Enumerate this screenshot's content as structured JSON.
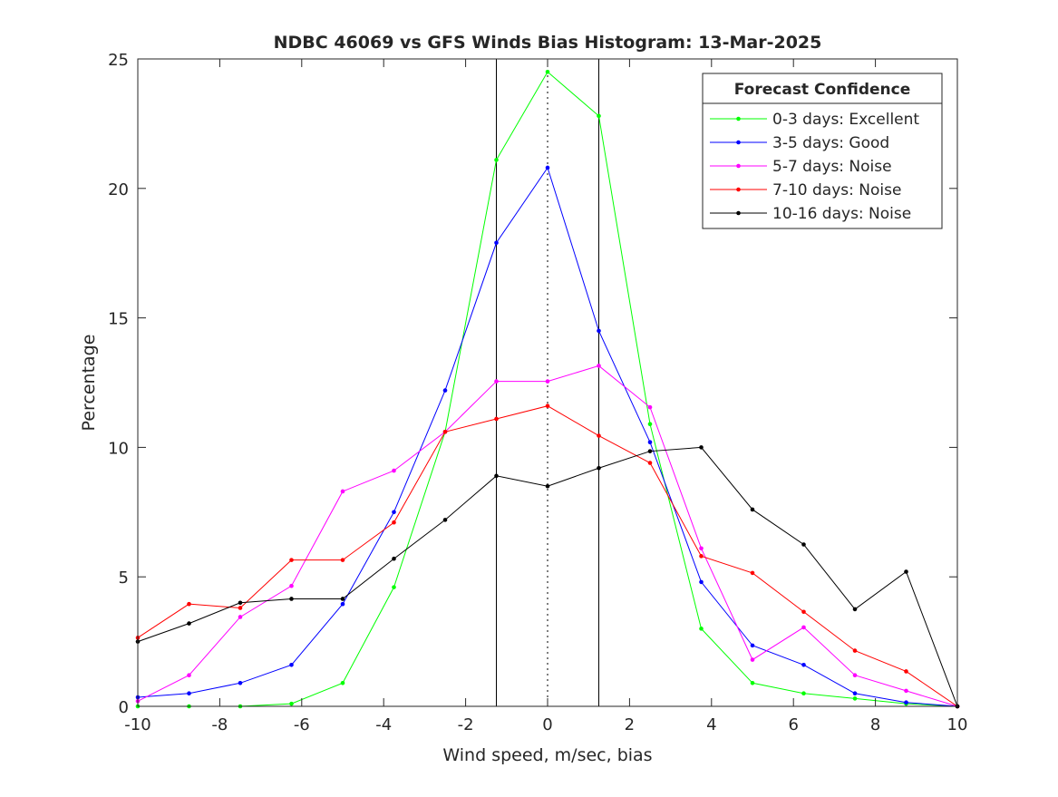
{
  "chart_data": {
    "type": "line",
    "title": "NDBC 46069 vs GFS Winds Bias Histogram: 13-Mar-2025",
    "xlabel": "Wind speed, m/sec, bias",
    "ylabel": "Percentage",
    "xlim": [
      -10,
      10
    ],
    "ylim": [
      0,
      25
    ],
    "xticks": [
      -10,
      -8,
      -6,
      -4,
      -2,
      0,
      2,
      4,
      6,
      8,
      10
    ],
    "yticks": [
      0,
      5,
      10,
      15,
      20,
      25
    ],
    "grid": false,
    "legend": {
      "title": "Forecast Confidence",
      "placement": "top-right"
    },
    "reference_lines": [
      {
        "x": -1.25,
        "style": "solid",
        "color": "#000000"
      },
      {
        "x": 0,
        "style": "dotted",
        "color": "#000000"
      },
      {
        "x": 1.25,
        "style": "solid",
        "color": "#000000"
      }
    ],
    "x": [
      -10,
      -8.75,
      -7.5,
      -6.25,
      -5,
      -3.75,
      -2.5,
      -1.25,
      0,
      1.25,
      2.5,
      3.75,
      5,
      6.25,
      7.5,
      8.75,
      10
    ],
    "series": [
      {
        "name": "0-3 days: Excellent",
        "color": "#00ff00",
        "values": [
          0,
          0,
          0,
          0.1,
          0.9,
          4.6,
          10.6,
          21.1,
          24.5,
          22.8,
          10.9,
          3.0,
          0.9,
          0.5,
          0.3,
          0.1,
          0
        ]
      },
      {
        "name": "3-5 days: Good",
        "color": "#0000ff",
        "values": [
          0.35,
          0.5,
          0.9,
          1.6,
          3.95,
          7.5,
          12.2,
          17.9,
          20.8,
          14.5,
          10.2,
          4.8,
          2.35,
          1.6,
          0.5,
          0.15,
          0
        ]
      },
      {
        "name": "5-7 days: Noise",
        "color": "#ff00ff",
        "values": [
          0.2,
          1.2,
          3.45,
          4.65,
          8.3,
          9.1,
          10.6,
          12.55,
          12.55,
          13.15,
          11.55,
          6.1,
          1.8,
          3.05,
          1.2,
          0.6,
          0
        ]
      },
      {
        "name": "7-10 days: Noise",
        "color": "#ff0000",
        "values": [
          2.65,
          3.95,
          3.8,
          5.65,
          5.65,
          7.1,
          10.6,
          11.1,
          11.6,
          10.45,
          9.4,
          5.8,
          5.15,
          3.65,
          2.15,
          1.35,
          0
        ]
      },
      {
        "name": "10-16 days: Noise",
        "color": "#000000",
        "values": [
          2.5,
          3.2,
          4.0,
          4.15,
          4.15,
          5.7,
          7.2,
          8.9,
          8.5,
          9.2,
          9.85,
          10.0,
          7.6,
          6.25,
          3.75,
          5.2,
          0
        ]
      }
    ]
  }
}
